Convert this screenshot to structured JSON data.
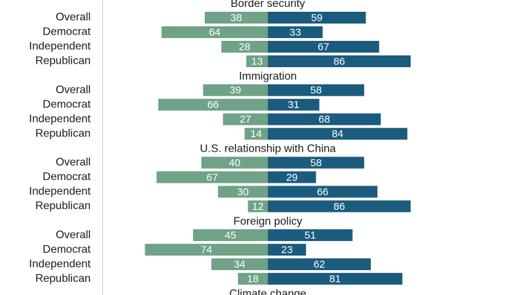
{
  "chart_data": {
    "type": "bar",
    "colors": {
      "left": "#6fa287",
      "right": "#1b5c7e",
      "axis": "#cccccc"
    },
    "xlim": [
      -100,
      100
    ],
    "categories": [
      "Overall",
      "Democrat",
      "Independent",
      "Republican"
    ],
    "sections": [
      {
        "title": "Border security",
        "left": [
          38,
          64,
          28,
          13
        ],
        "right": [
          59,
          33,
          67,
          86
        ]
      },
      {
        "title": "Immigration",
        "left": [
          39,
          66,
          27,
          14
        ],
        "right": [
          58,
          31,
          68,
          84
        ]
      },
      {
        "title": "U.S. relationship with China",
        "left": [
          40,
          67,
          30,
          12
        ],
        "right": [
          58,
          29,
          66,
          86
        ]
      },
      {
        "title": "Foreign policy",
        "left": [
          45,
          74,
          34,
          18
        ],
        "right": [
          51,
          23,
          62,
          81
        ]
      },
      {
        "title": "Climate change",
        "left": [],
        "right": []
      }
    ]
  }
}
